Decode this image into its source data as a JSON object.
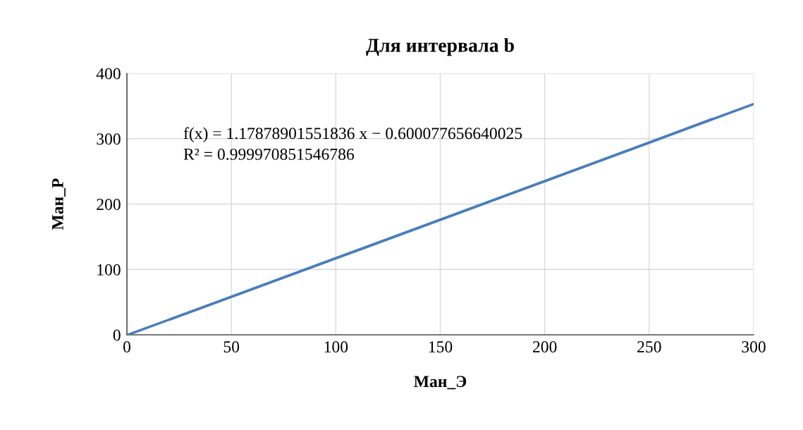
{
  "chart_data": {
    "type": "line",
    "title": "Для интервала b",
    "xlabel": "Ман_Э",
    "ylabel": "Ман_Р",
    "series": [
      {
        "color": "#4a7ebb",
        "x": [
          21,
          50,
          100,
          150,
          200,
          250,
          280
        ],
        "values": [
          24,
          58,
          117,
          176,
          235,
          294,
          330
        ]
      },
      {
        "color": "#4a7ebb",
        "x": [
          0.5,
          300
        ],
        "values": [
          0,
          353
        ]
      }
    ],
    "xlim": [
      0,
      300
    ],
    "xticks": [
      0,
      50,
      100,
      150,
      200,
      250,
      300
    ],
    "ylim": [
      0,
      400
    ],
    "yticks": [
      0,
      100,
      200,
      300,
      400
    ],
    "grid": true,
    "marker": "none",
    "line_style": "solid",
    "annotations": [
      "f(x) = 1.17878901551836 x − 0.600077656640025",
      "R² = 0.999970851546786"
    ]
  }
}
